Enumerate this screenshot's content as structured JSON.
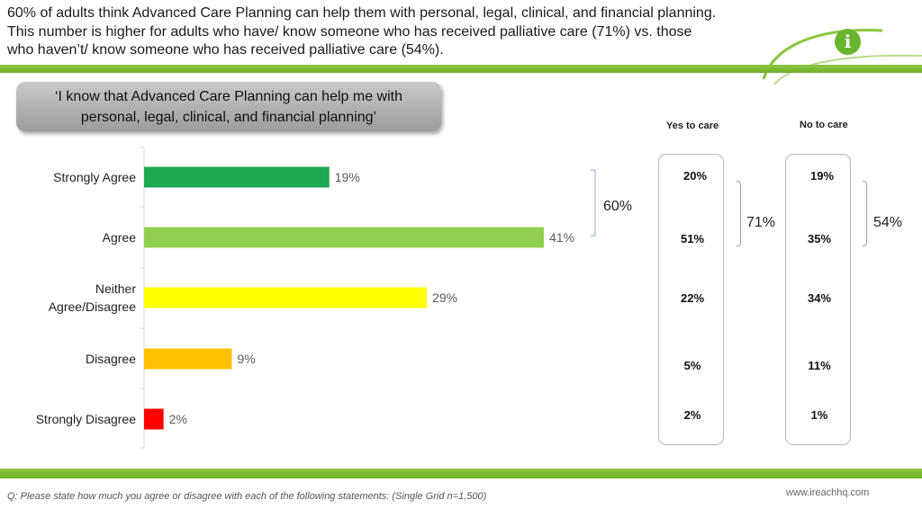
{
  "headline": {
    "line1": "60% of adults think Advanced Care Planning can help them with personal, legal, clinical, and financial planning.",
    "line2": "This number is higher for adults who have/ know someone who has received palliative care (71%) vs. those",
    "line3": "who haven’t/ know someone who has received palliative care (54%)."
  },
  "statement": {
    "line1": "‘I know that Advanced Care Planning can help me with",
    "line2": "personal, legal, clinical, and financial planning’"
  },
  "logo": {
    "glyph": "i",
    "icon": "info-icon"
  },
  "chart_data": {
    "type": "bar",
    "orientation": "horizontal",
    "categories": [
      "Strongly Agree",
      "Agree",
      "Neither Agree/Disagree",
      "Disagree",
      "Strongly Disagree"
    ],
    "category_lines": [
      [
        "Strongly Agree"
      ],
      [
        "Agree"
      ],
      [
        "Neither",
        "Agree/Disagree"
      ],
      [
        "Disagree"
      ],
      [
        "Strongly Disagree"
      ]
    ],
    "values": [
      19,
      41,
      29,
      9,
      2
    ],
    "value_labels": [
      "19%",
      "41%",
      "29%",
      "9%",
      "2%"
    ],
    "colors": [
      "#1fa84f",
      "#92d050",
      "#ffff00",
      "#ffc000",
      "#ff0000"
    ],
    "xlim": [
      0,
      41
    ],
    "total_agree_label": "60%",
    "unit": "%"
  },
  "comparison": {
    "yes_header": "Yes to care",
    "no_header": "No to care",
    "yes_values": [
      "20%",
      "51%",
      "22%",
      "5%",
      "2%"
    ],
    "no_values": [
      "19%",
      "35%",
      "34%",
      "11%",
      "1%"
    ],
    "yes_agree_total": "71%",
    "no_agree_total": "54%"
  },
  "footer": {
    "question": "Q: Please state how much you agree or disagree with each of the following statements: (Single Grid n=1,500)",
    "website": "www.ireachhq.com"
  }
}
